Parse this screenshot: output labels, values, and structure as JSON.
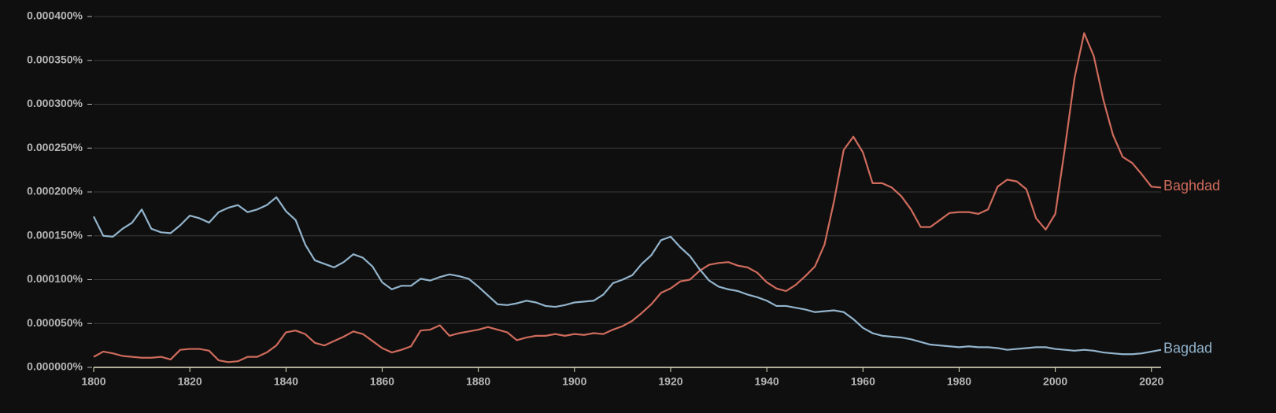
{
  "chart_data": {
    "type": "line",
    "x": [
      1800,
      1802,
      1804,
      1806,
      1808,
      1810,
      1812,
      1814,
      1816,
      1818,
      1820,
      1822,
      1824,
      1826,
      1828,
      1830,
      1832,
      1834,
      1836,
      1838,
      1840,
      1842,
      1844,
      1846,
      1848,
      1850,
      1852,
      1854,
      1856,
      1858,
      1860,
      1862,
      1864,
      1866,
      1868,
      1870,
      1872,
      1874,
      1876,
      1878,
      1880,
      1882,
      1884,
      1886,
      1888,
      1890,
      1892,
      1894,
      1896,
      1898,
      1900,
      1902,
      1904,
      1906,
      1908,
      1910,
      1912,
      1914,
      1916,
      1918,
      1920,
      1922,
      1924,
      1926,
      1928,
      1930,
      1932,
      1934,
      1936,
      1938,
      1940,
      1942,
      1944,
      1946,
      1948,
      1950,
      1952,
      1954,
      1956,
      1958,
      1960,
      1962,
      1964,
      1966,
      1968,
      1970,
      1972,
      1974,
      1976,
      1978,
      1980,
      1982,
      1984,
      1986,
      1988,
      1990,
      1992,
      1994,
      1996,
      1998,
      2000,
      2002,
      2004,
      2006,
      2008,
      2010,
      2012,
      2014,
      2016,
      2018,
      2020,
      2022
    ],
    "series": [
      {
        "name": "Baghdad",
        "color": "#cf6b5c",
        "values": [
          1.2e-05,
          1.8e-05,
          1.6e-05,
          1.3e-05,
          1.2e-05,
          1.1e-05,
          1.1e-05,
          1.2e-05,
          9e-06,
          2e-05,
          2.1e-05,
          2.1e-05,
          1.9e-05,
          8e-06,
          6e-06,
          7e-06,
          1.2e-05,
          1.2e-05,
          1.7e-05,
          2.5e-05,
          4e-05,
          4.2e-05,
          3.8e-05,
          2.8e-05,
          2.5e-05,
          3e-05,
          3.5e-05,
          4.1e-05,
          3.8e-05,
          3e-05,
          2.2e-05,
          1.7e-05,
          2e-05,
          2.4e-05,
          4.2e-05,
          4.3e-05,
          4.8e-05,
          3.6e-05,
          3.9e-05,
          4.1e-05,
          4.3e-05,
          4.6e-05,
          4.3e-05,
          4e-05,
          3.1e-05,
          3.4e-05,
          3.6e-05,
          3.6e-05,
          3.8e-05,
          3.6e-05,
          3.8e-05,
          3.7e-05,
          3.9e-05,
          3.8e-05,
          4.3e-05,
          4.7e-05,
          5.3e-05,
          6.2e-05,
          7.2e-05,
          8.5e-05,
          9e-05,
          9.8e-05,
          0.0001,
          0.00011,
          0.000117,
          0.000119,
          0.00012,
          0.000116,
          0.000114,
          0.000108,
          9.7e-05,
          9e-05,
          8.7e-05,
          9.4e-05,
          0.000104,
          0.000115,
          0.00014,
          0.00019,
          0.000248,
          0.000263,
          0.000245,
          0.00021,
          0.00021,
          0.000205,
          0.000195,
          0.00018,
          0.00016,
          0.00016,
          0.000168,
          0.000176,
          0.000177,
          0.000177,
          0.000175,
          0.00018,
          0.000206,
          0.000214,
          0.000212,
          0.000203,
          0.00017,
          0.000157,
          0.000175,
          0.00025,
          0.00033,
          0.000381,
          0.000355,
          0.000305,
          0.000265,
          0.00024,
          0.000233,
          0.00022,
          0.000206,
          0.000205
        ]
      },
      {
        "name": "Bagdad",
        "color": "#93b4cc",
        "values": [
          0.000172,
          0.00015,
          0.000149,
          0.000158,
          0.000165,
          0.00018,
          0.000158,
          0.000154,
          0.000153,
          0.000162,
          0.000173,
          0.00017,
          0.000165,
          0.000177,
          0.000182,
          0.000185,
          0.000177,
          0.00018,
          0.000185,
          0.000194,
          0.000178,
          0.000168,
          0.00014,
          0.000122,
          0.000118,
          0.000114,
          0.00012,
          0.000129,
          0.000125,
          0.000115,
          9.7e-05,
          8.9e-05,
          9.3e-05,
          9.3e-05,
          0.000101,
          9.9e-05,
          0.000103,
          0.000106,
          0.000104,
          0.000101,
          9.2e-05,
          8.2e-05,
          7.2e-05,
          7.1e-05,
          7.3e-05,
          7.6e-05,
          7.4e-05,
          7e-05,
          6.9e-05,
          7.1e-05,
          7.4e-05,
          7.5e-05,
          7.6e-05,
          8.3e-05,
          9.6e-05,
          0.0001,
          0.000105,
          0.000118,
          0.000128,
          0.000145,
          0.000149,
          0.000137,
          0.000127,
          0.000112,
          9.9e-05,
          9.2e-05,
          8.9e-05,
          8.7e-05,
          8.3e-05,
          8e-05,
          7.6e-05,
          7e-05,
          7e-05,
          6.8e-05,
          6.6e-05,
          6.3e-05,
          6.4e-05,
          6.5e-05,
          6.3e-05,
          5.5e-05,
          4.5e-05,
          3.9e-05,
          3.6e-05,
          3.5e-05,
          3.4e-05,
          3.2e-05,
          2.9e-05,
          2.6e-05,
          2.5e-05,
          2.4e-05,
          2.3e-05,
          2.4e-05,
          2.3e-05,
          2.3e-05,
          2.2e-05,
          2e-05,
          2.1e-05,
          2.2e-05,
          2.3e-05,
          2.3e-05,
          2.1e-05,
          2e-05,
          1.9e-05,
          2e-05,
          1.9e-05,
          1.7e-05,
          1.6e-05,
          1.5e-05,
          1.5e-05,
          1.6e-05,
          1.8e-05,
          2e-05
        ]
      }
    ],
    "xlim": [
      1800,
      2022
    ],
    "xticks": [
      1800,
      1820,
      1840,
      1860,
      1880,
      1900,
      1920,
      1940,
      1960,
      1980,
      2000,
      2020
    ],
    "ylim": [
      0,
      0.0004
    ],
    "yticks": [
      {
        "value": 0,
        "label": "0.000000%"
      },
      {
        "value": 5e-05,
        "label": "0.000050%"
      },
      {
        "value": 0.0001,
        "label": "0.000100%"
      },
      {
        "value": 0.00015,
        "label": "0.000150%"
      },
      {
        "value": 0.0002,
        "label": "0.000200%"
      },
      {
        "value": 0.00025,
        "label": "0.000250%"
      },
      {
        "value": 0.0003,
        "label": "0.000300%"
      },
      {
        "value": 0.00035,
        "label": "0.000350%"
      },
      {
        "value": 0.0004,
        "label": "0.000400%"
      }
    ],
    "grid": true
  }
}
